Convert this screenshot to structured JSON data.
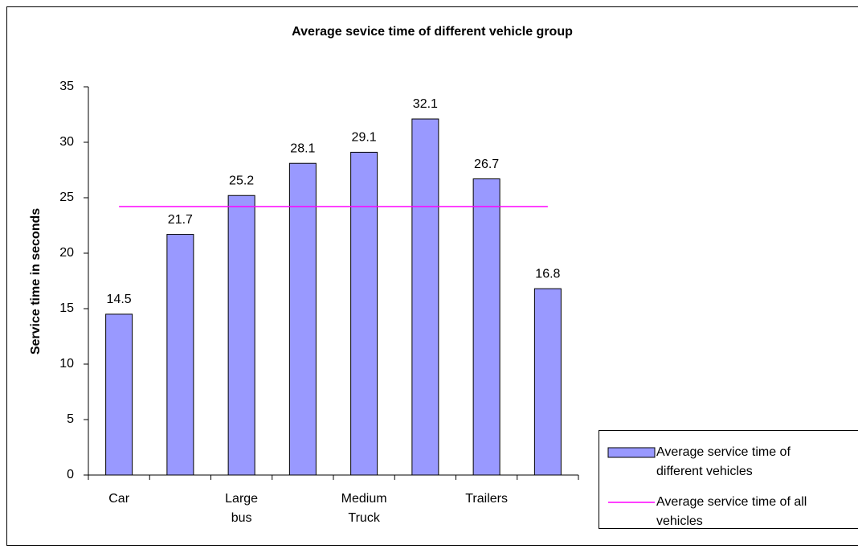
{
  "chart_data": {
    "type": "bar",
    "title": "Average sevice time of different vehicle group",
    "y_label": "Service time in seconds",
    "categories": [
      "Car",
      null,
      "Large bus",
      null,
      "Medium Truck",
      null,
      "Trailers",
      null
    ],
    "series": [
      {
        "name": "Average service time of different vehicles",
        "type": "bar",
        "color": "#9999ff",
        "values": [
          14.5,
          21.7,
          25.2,
          28.1,
          29.1,
          32.1,
          26.7,
          16.8
        ]
      },
      {
        "name": "Average service time of all vehicles",
        "type": "line",
        "color": "#ff00ff",
        "values": [
          24.2,
          24.2,
          24.2,
          24.2,
          24.2,
          24.2,
          24.2,
          24.2
        ]
      }
    ],
    "ylim": [
      0,
      35
    ],
    "yticks": [
      0,
      5,
      10,
      15,
      20,
      25,
      30,
      35
    ],
    "grid": false,
    "legend": "lower right"
  }
}
